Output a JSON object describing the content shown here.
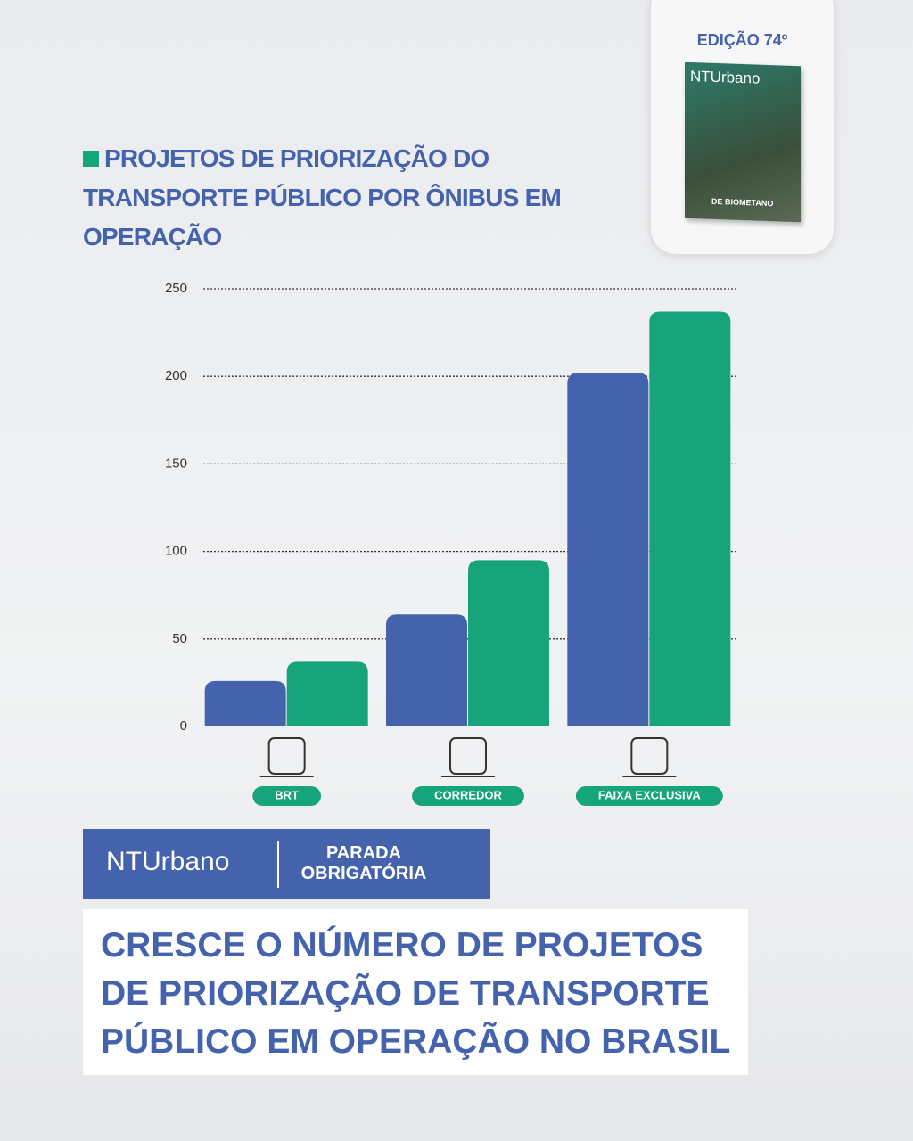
{
  "edition": "EDIÇÃO 74º",
  "cover": {
    "brand": "NTUrbano",
    "headline": "DE BIOMETANO"
  },
  "chart_data": {
    "type": "bar",
    "title": "PROJETOS DE PRIORIZAÇÃO DO TRANSPORTE PÚBLICO POR ÔNIBUS EM OPERAÇÃO",
    "categories": [
      "BRT",
      "CORREDOR",
      "FAIXA EXCLUSIVA"
    ],
    "series": [
      {
        "color": "#4563ad",
        "values": [
          26,
          64,
          202
        ]
      },
      {
        "color": "#16a57b",
        "values": [
          37,
          95,
          237
        ]
      }
    ],
    "ylim": [
      0,
      250
    ],
    "yticks": [
      0,
      50,
      100,
      150,
      200,
      250
    ],
    "grid": true
  },
  "banner": {
    "brand": "NTUrbano",
    "section": "PARADA OBRIGATÓRIA"
  },
  "headline": [
    "CRESCE O NÚMERO DE PROJETOS",
    "DE PRIORIZAÇÃO DE TRANSPORTE",
    "PÚBLICO EM OPERAÇÃO NO BRASIL"
  ]
}
